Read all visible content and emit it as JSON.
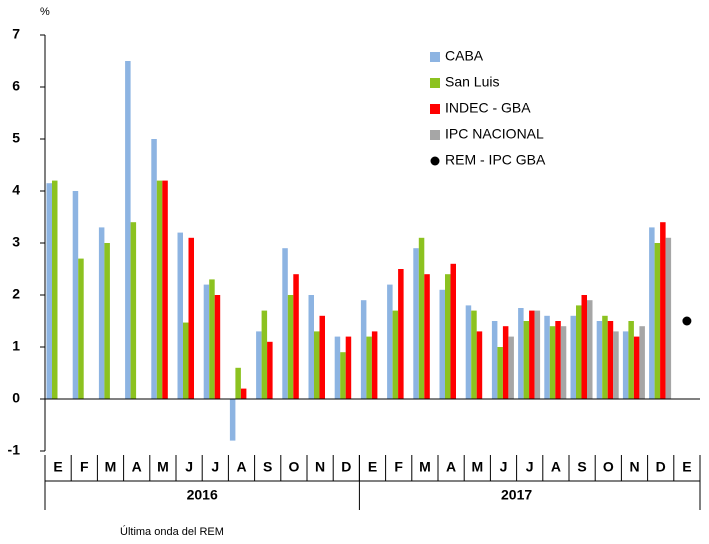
{
  "chart_data": {
    "type": "bar",
    "unit": "%",
    "note": "Última onda del REM",
    "groups": [
      {
        "label": "2016",
        "categories": [
          "E",
          "F",
          "M",
          "A",
          "M",
          "J",
          "J",
          "A",
          "S",
          "O",
          "N",
          "D"
        ]
      },
      {
        "label": "2017",
        "categories": [
          "E",
          "F",
          "M",
          "A",
          "M",
          "J",
          "J",
          "A",
          "S",
          "O",
          "N",
          "D",
          "E"
        ]
      }
    ],
    "series": [
      {
        "name": "CABA",
        "color": "#8db4e2",
        "values": [
          4.15,
          4.0,
          3.3,
          6.5,
          5.0,
          3.2,
          2.2,
          -0.8,
          1.3,
          2.9,
          2.0,
          1.2,
          1.9,
          2.2,
          2.9,
          2.1,
          1.8,
          1.5,
          1.75,
          1.6,
          1.6,
          1.5,
          1.3,
          3.3,
          null
        ]
      },
      {
        "name": "San Luis",
        "color": "#8cc220",
        "values": [
          4.2,
          2.7,
          3.0,
          3.4,
          4.2,
          1.47,
          2.3,
          0.6,
          1.7,
          2.0,
          1.3,
          0.9,
          1.2,
          1.7,
          3.1,
          2.4,
          1.7,
          1.0,
          1.5,
          1.4,
          1.8,
          1.6,
          1.5,
          3.0,
          null
        ]
      },
      {
        "name": "INDEC - GBA",
        "color": "#ff0000",
        "values": [
          null,
          null,
          null,
          null,
          4.2,
          3.1,
          2.0,
          0.2,
          1.1,
          2.4,
          1.6,
          1.2,
          1.3,
          2.5,
          2.4,
          2.6,
          1.3,
          1.4,
          1.7,
          1.5,
          2.0,
          1.5,
          1.2,
          3.4,
          null
        ]
      },
      {
        "name": "IPC NACIONAL",
        "color": "#a6a6a6",
        "values": [
          null,
          null,
          null,
          null,
          null,
          null,
          null,
          null,
          null,
          null,
          null,
          null,
          null,
          null,
          null,
          null,
          null,
          1.2,
          1.7,
          1.4,
          1.9,
          1.3,
          1.4,
          3.1,
          null
        ]
      },
      {
        "name": "REM - IPC GBA",
        "color": "#000000",
        "marker": "dot",
        "values": [
          null,
          null,
          null,
          null,
          null,
          null,
          null,
          null,
          null,
          null,
          null,
          null,
          null,
          null,
          null,
          null,
          null,
          null,
          null,
          null,
          null,
          null,
          null,
          null,
          1.5
        ]
      }
    ],
    "ylim": [
      -1,
      7
    ],
    "yticks": [
      -1,
      0,
      1,
      2,
      3,
      4,
      5,
      6,
      7
    ]
  }
}
